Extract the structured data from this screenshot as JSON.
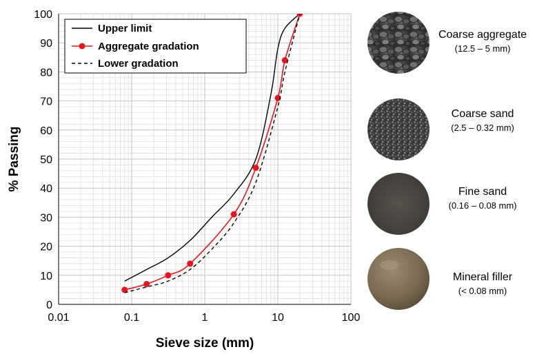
{
  "chart_data": {
    "type": "line",
    "title": "",
    "xlabel": "Sieve size (mm)",
    "ylabel": "% Passing",
    "xscale": "log",
    "xlim": [
      0.01,
      100
    ],
    "ylim": [
      0,
      100
    ],
    "x_ticks": [
      0.01,
      0.1,
      1,
      10,
      100
    ],
    "x_tick_labels": [
      "0.01",
      "0.1",
      "1",
      "10",
      "100"
    ],
    "y_ticks": [
      0,
      10,
      20,
      30,
      40,
      50,
      60,
      70,
      80,
      90,
      100
    ],
    "grid": true,
    "legend_position": "top-left",
    "series": [
      {
        "name": "Upper limit",
        "style": "solid",
        "color": "#000000",
        "x": [
          0.08,
          0.16,
          0.315,
          0.63,
          1.25,
          2.5,
          5,
          8,
          10,
          12.5,
          20
        ],
        "y": [
          8,
          12,
          16,
          22,
          30,
          38,
          50,
          72,
          88,
          95,
          100
        ]
      },
      {
        "name": "Aggregate gradation",
        "style": "solid-markers",
        "color": "#e8141b",
        "x": [
          0.08,
          0.16,
          0.315,
          0.63,
          2.5,
          5,
          10,
          12.5,
          20
        ],
        "y": [
          5,
          7,
          10,
          14,
          31,
          47,
          71,
          84,
          100
        ]
      },
      {
        "name": "Lower gradation",
        "style": "dashed",
        "color": "#000000",
        "x": [
          0.08,
          0.16,
          0.315,
          0.63,
          1.25,
          2.5,
          5,
          10,
          12.5,
          20
        ],
        "y": [
          4,
          6,
          8,
          12,
          19,
          28,
          42,
          68,
          80,
          100
        ]
      }
    ]
  },
  "materials": [
    {
      "name": "Coarse aggregate",
      "range": "(12.5 – 5 mm)",
      "icon": "coarse-aggregate-photo",
      "color": "#555555"
    },
    {
      "name": "Coarse sand",
      "range": "(2.5 – 0.32 mm)",
      "icon": "coarse-sand-photo",
      "color": "#4a4a4a"
    },
    {
      "name": "Fine sand",
      "range": "(0.16 – 0.08 mm)",
      "icon": "fine-sand-photo",
      "color": "#4f4a45"
    },
    {
      "name": "Mineral filler",
      "range": "(< 0.08 mm)",
      "icon": "mineral-filler-photo",
      "color": "#7d6c55"
    }
  ]
}
